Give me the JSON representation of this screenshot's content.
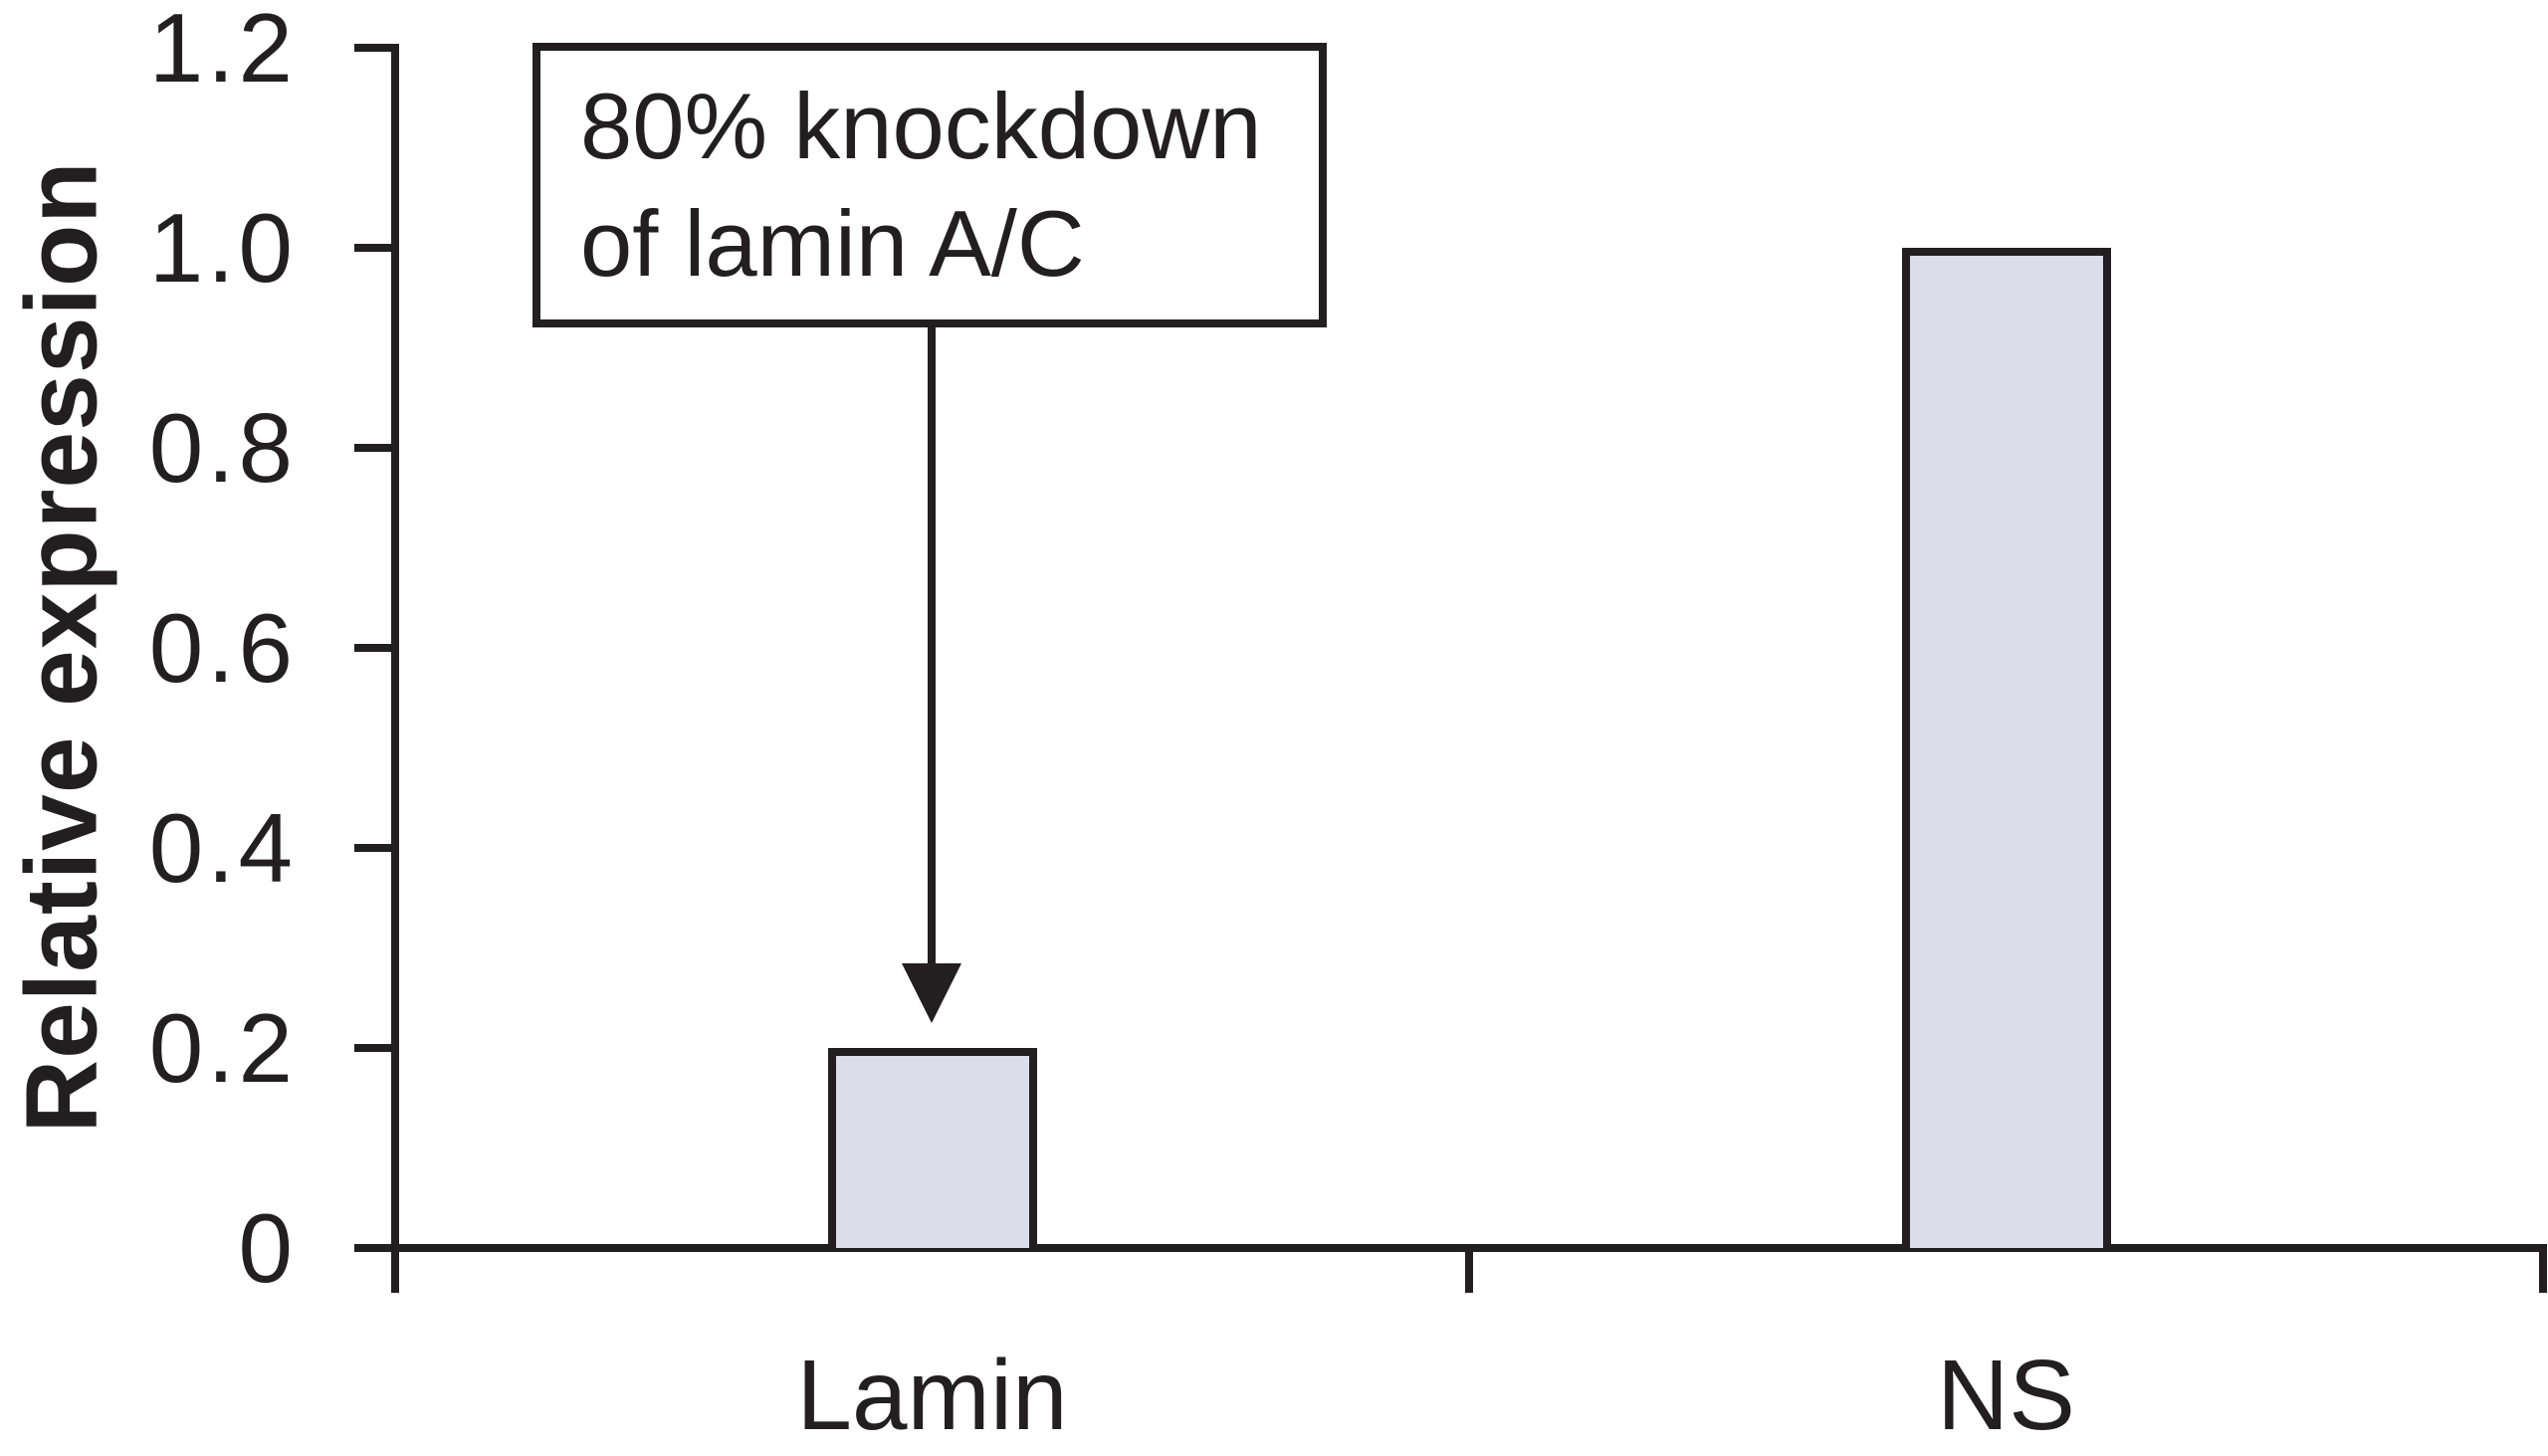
{
  "colors": {
    "ink": "#231f20",
    "bar_fill": "#dbdeea",
    "background": "#ffffff"
  },
  "chart_data": {
    "type": "bar",
    "title": "",
    "categories": [
      "Lamin",
      "NS"
    ],
    "values": [
      0.2,
      1.0
    ],
    "series": [
      {
        "name": "Relative expression",
        "values": [
          0.2,
          1.0
        ]
      }
    ],
    "xlabel": "",
    "ylabel": "Relative expression",
    "ylim": [
      0,
      1.2
    ],
    "yticks": [
      0,
      0.2,
      0.4,
      0.6,
      0.8,
      1.0,
      1.2
    ],
    "ytick_labels": [
      "0",
      "0.2",
      "0.4",
      "0.6",
      "0.8",
      "1.0",
      "1.2"
    ],
    "grid": false,
    "legend": "none",
    "annotation": {
      "line1": "80% knockdown",
      "line2": "of lamin A/C",
      "target_category": "Lamin",
      "arrow": "down"
    }
  }
}
